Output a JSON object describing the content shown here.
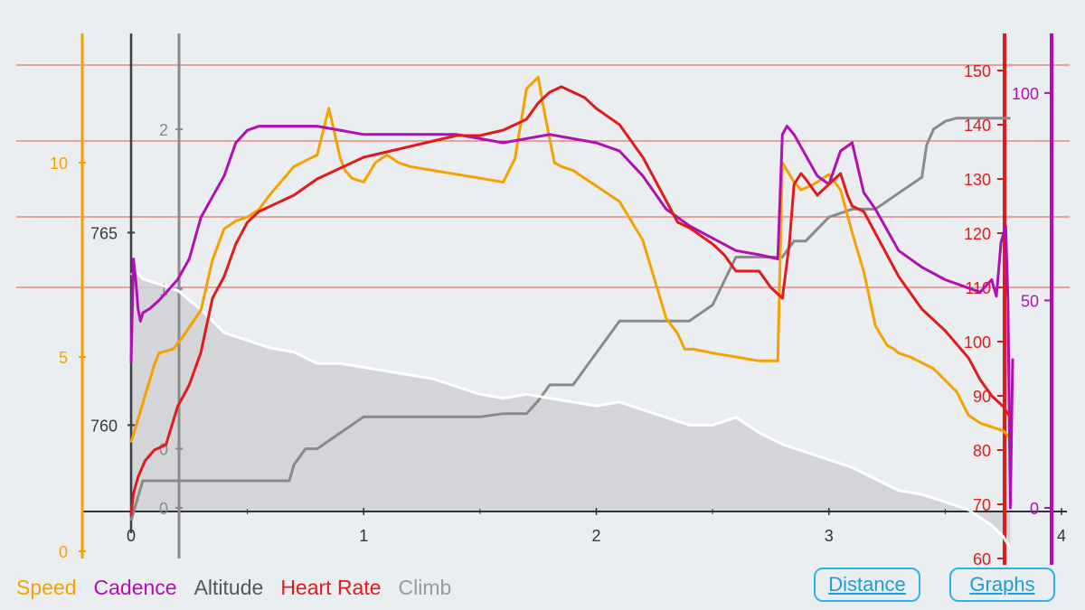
{
  "chart_data": {
    "type": "line",
    "xlabel": "",
    "x_ticks": [
      "0",
      "1",
      "2",
      "3",
      "4"
    ],
    "xlim": [
      0,
      4
    ],
    "colors": {
      "speed": "#f5a200",
      "cadence": "#b10fb5",
      "altitude": "#3b3b45",
      "heart_rate": "#e01b1b",
      "climb": "#8a8a8a",
      "elevation_fill": "#cfd0d5"
    },
    "axes": {
      "speed": {
        "ticks": [
          "0",
          "5",
          "10"
        ],
        "range": [
          0,
          14
        ]
      },
      "altitude": {
        "ticks": [
          "760",
          "765"
        ],
        "range": [
          756.7,
          769.4
        ]
      },
      "climb": {
        "ticks": [
          "0",
          "0",
          "1",
          "2"
        ],
        "range": [
          -0.5,
          2.3
        ]
      },
      "heart_rate": {
        "ticks": [
          "60",
          "70",
          "80",
          "90",
          "100",
          "110",
          "120",
          "130",
          "140",
          "150"
        ],
        "range": [
          60,
          153
        ]
      },
      "cadence": {
        "ticks": [
          "0",
          "50",
          "100"
        ],
        "range": [
          0,
          115
        ]
      }
    },
    "heart_rate_zone_lines": [
      110,
      123,
      137,
      151
    ],
    "series": [
      {
        "name": "Speed",
        "color": "#f5a200",
        "x": [
          0,
          0.02,
          0.05,
          0.1,
          0.12,
          0.18,
          0.22,
          0.3,
          0.35,
          0.4,
          0.45,
          0.5,
          0.55,
          0.6,
          0.7,
          0.8,
          0.85,
          0.9,
          0.92,
          0.95,
          1.0,
          1.05,
          1.1,
          1.15,
          1.2,
          1.3,
          1.4,
          1.5,
          1.6,
          1.65,
          1.7,
          1.75,
          1.78,
          1.82,
          1.85,
          1.9,
          1.95,
          2.0,
          2.1,
          2.2,
          2.3,
          2.35,
          2.38,
          2.42,
          2.5,
          2.6,
          2.7,
          2.78,
          2.8,
          2.85,
          2.88,
          2.92,
          2.95,
          3.0,
          3.05,
          3.1,
          3.15,
          3.2,
          3.25,
          3.28,
          3.3,
          3.35,
          3.45,
          3.55,
          3.6,
          3.65,
          3.7,
          3.75,
          3.78
        ],
        "values": [
          2.8,
          3.2,
          3.8,
          4.8,
          5.1,
          5.2,
          5.5,
          6.2,
          7.5,
          8.3,
          8.5,
          8.6,
          8.8,
          9.2,
          9.9,
          10.2,
          11.4,
          10.1,
          9.8,
          9.6,
          9.5,
          10.0,
          10.2,
          10.0,
          9.9,
          9.8,
          9.7,
          9.6,
          9.5,
          10.1,
          11.9,
          12.2,
          11.2,
          10.0,
          9.9,
          9.8,
          9.6,
          9.4,
          9.0,
          8.0,
          6.0,
          5.6,
          5.2,
          5.2,
          5.1,
          5.0,
          4.9,
          4.9,
          10.0,
          9.5,
          9.3,
          9.4,
          9.5,
          9.7,
          9.3,
          8.2,
          7.2,
          5.8,
          5.3,
          5.2,
          5.1,
          5.0,
          4.7,
          4.1,
          3.5,
          3.3,
          3.2,
          3.1,
          2.9
        ]
      },
      {
        "name": "Cadence",
        "color": "#b10fb5",
        "x": [
          0,
          0.01,
          0.02,
          0.03,
          0.04,
          0.05,
          0.08,
          0.12,
          0.2,
          0.25,
          0.3,
          0.35,
          0.4,
          0.45,
          0.5,
          0.55,
          0.6,
          0.8,
          1.0,
          1.2,
          1.4,
          1.6,
          1.8,
          2.0,
          2.1,
          2.2,
          2.3,
          2.4,
          2.5,
          2.6,
          2.7,
          2.78,
          2.8,
          2.82,
          2.85,
          2.9,
          2.95,
          3.0,
          3.05,
          3.1,
          3.15,
          3.2,
          3.3,
          3.4,
          3.5,
          3.6,
          3.65,
          3.7,
          3.72,
          3.74,
          3.75,
          3.76,
          3.77,
          3.78,
          3.79
        ],
        "values": [
          35,
          60,
          55,
          48,
          45,
          47,
          48,
          50,
          55,
          60,
          70,
          75,
          80,
          88,
          91,
          92,
          92,
          92,
          90,
          90,
          90,
          88,
          90,
          88,
          86,
          80,
          72,
          68,
          65,
          62,
          61,
          60,
          90,
          92,
          90,
          85,
          80,
          78,
          86,
          88,
          76,
          72,
          62,
          58,
          55,
          53,
          52,
          55,
          51,
          64,
          66,
          68,
          50,
          0,
          36
        ]
      },
      {
        "name": "Altitude",
        "color": "#ffffff",
        "x": [
          0,
          0.02,
          0.05,
          0.1,
          0.2,
          0.3,
          0.4,
          0.5,
          0.6,
          0.7,
          0.8,
          0.9,
          1.0,
          1.1,
          1.2,
          1.3,
          1.4,
          1.5,
          1.6,
          1.7,
          1.8,
          1.9,
          2.0,
          2.1,
          2.2,
          2.3,
          2.4,
          2.5,
          2.6,
          2.7,
          2.8,
          2.9,
          3.0,
          3.1,
          3.2,
          3.3,
          3.4,
          3.5,
          3.6,
          3.65,
          3.7,
          3.75,
          3.78
        ],
        "values": [
          763.9,
          764.0,
          763.8,
          763.7,
          763.5,
          763.0,
          762.4,
          762.2,
          762.0,
          761.9,
          761.6,
          761.6,
          761.5,
          761.4,
          761.3,
          761.2,
          761.0,
          760.8,
          760.7,
          760.8,
          760.7,
          760.6,
          760.5,
          760.6,
          760.4,
          760.2,
          760.0,
          760.0,
          760.2,
          759.8,
          759.5,
          759.3,
          759.1,
          758.9,
          758.6,
          758.3,
          758.2,
          758.0,
          757.8,
          757.6,
          757.4,
          757.1,
          756.8
        ]
      },
      {
        "name": "Heart Rate",
        "color": "#e01b1b",
        "x": [
          0,
          0.01,
          0.03,
          0.06,
          0.1,
          0.15,
          0.2,
          0.25,
          0.3,
          0.35,
          0.4,
          0.45,
          0.5,
          0.55,
          0.6,
          0.7,
          0.8,
          0.9,
          1.0,
          1.1,
          1.2,
          1.3,
          1.4,
          1.5,
          1.6,
          1.7,
          1.75,
          1.8,
          1.85,
          1.9,
          1.95,
          2.0,
          2.1,
          2.2,
          2.3,
          2.35,
          2.4,
          2.5,
          2.55,
          2.6,
          2.7,
          2.75,
          2.8,
          2.83,
          2.85,
          2.88,
          2.9,
          2.95,
          3.0,
          3.05,
          3.08,
          3.1,
          3.15,
          3.2,
          3.3,
          3.4,
          3.5,
          3.6,
          3.65,
          3.7,
          3.75,
          3.78
        ],
        "values": [
          68,
          72,
          75,
          78,
          80,
          81,
          88,
          92,
          98,
          108,
          112,
          118,
          122,
          124,
          125,
          127,
          130,
          132,
          134,
          135,
          136,
          137,
          138,
          138,
          139,
          141,
          144,
          146,
          147,
          146,
          145,
          143,
          140,
          134,
          126,
          122,
          121,
          118,
          116,
          113,
          113,
          110,
          108,
          118,
          129,
          131,
          130,
          127,
          129,
          131,
          127,
          125,
          124,
          120,
          112,
          106,
          102,
          97,
          93,
          90,
          88,
          86
        ]
      },
      {
        "name": "Climb",
        "color": "#8a8a8a",
        "x": [
          0,
          0.03,
          0.05,
          0.1,
          0.2,
          0.3,
          0.4,
          0.5,
          0.6,
          0.68,
          0.7,
          0.75,
          0.8,
          0.9,
          1.0,
          1.1,
          1.2,
          1.3,
          1.4,
          1.5,
          1.6,
          1.7,
          1.75,
          1.8,
          1.9,
          2.0,
          2.05,
          2.1,
          2.15,
          2.2,
          2.3,
          2.4,
          2.5,
          2.6,
          2.7,
          2.8,
          2.85,
          2.9,
          3.0,
          3.1,
          3.2,
          3.3,
          3.4,
          3.42,
          3.45,
          3.5,
          3.55,
          3.6,
          3.7,
          3.78
        ],
        "values": [
          -0.45,
          -0.3,
          -0.2,
          -0.2,
          -0.2,
          -0.2,
          -0.2,
          -0.2,
          -0.2,
          -0.2,
          -0.1,
          0.0,
          0.0,
          0.1,
          0.2,
          0.2,
          0.2,
          0.2,
          0.2,
          0.2,
          0.22,
          0.22,
          0.3,
          0.4,
          0.4,
          0.6,
          0.7,
          0.8,
          0.8,
          0.8,
          0.8,
          0.8,
          0.9,
          1.2,
          1.2,
          1.2,
          1.3,
          1.3,
          1.45,
          1.5,
          1.5,
          1.6,
          1.7,
          1.9,
          2.0,
          2.05,
          2.07,
          2.07,
          2.07,
          2.07
        ]
      }
    ]
  },
  "legend": {
    "speed": "Speed",
    "cadence": "Cadence",
    "altitude": "Altitude",
    "heart_rate": "Heart Rate",
    "climb": "Climb"
  },
  "buttons": {
    "distance": "Distance",
    "graphs": "Graphs"
  }
}
